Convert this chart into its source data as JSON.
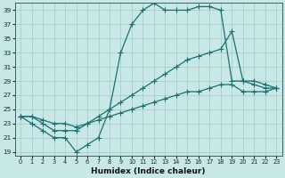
{
  "xlabel": "Humidex (Indice chaleur)",
  "xlim": [
    -0.5,
    23.5
  ],
  "ylim": [
    18.5,
    40
  ],
  "xticks": [
    0,
    1,
    2,
    3,
    4,
    5,
    6,
    7,
    8,
    9,
    10,
    11,
    12,
    13,
    14,
    15,
    16,
    17,
    18,
    19,
    20,
    21,
    22,
    23
  ],
  "yticks": [
    19,
    21,
    23,
    25,
    27,
    29,
    31,
    33,
    35,
    37,
    39
  ],
  "bg_color": "#c8e8e8",
  "grid_color": "#aacccc",
  "line_color": "#1a7070",
  "line1_x": [
    0,
    1,
    2,
    3,
    4,
    5,
    6,
    7,
    8,
    9,
    10,
    11,
    12,
    13,
    14,
    15,
    16,
    17,
    18,
    19,
    20,
    21,
    22,
    23
  ],
  "line1_y": [
    24,
    23,
    22,
    21,
    21,
    19,
    20,
    21,
    25,
    33,
    37,
    39,
    40,
    39,
    39,
    39,
    39.5,
    39.5,
    39,
    29,
    29,
    28.5,
    28,
    28
  ],
  "line2_x": [
    0,
    1,
    2,
    3,
    4,
    5,
    6,
    7,
    8,
    9,
    10,
    11,
    12,
    13,
    14,
    15,
    16,
    17,
    18,
    19,
    20,
    21,
    22,
    23
  ],
  "line2_y": [
    24,
    24,
    23,
    22,
    22,
    22,
    23,
    24,
    25,
    26,
    27,
    28,
    29,
    30,
    31,
    32,
    32.5,
    33,
    33.5,
    36,
    29,
    29,
    28.5,
    28
  ],
  "line3_x": [
    0,
    1,
    2,
    3,
    4,
    5,
    6,
    7,
    8,
    9,
    10,
    11,
    12,
    13,
    14,
    15,
    16,
    17,
    18,
    19,
    20,
    21,
    22,
    23
  ],
  "line3_y": [
    24,
    24,
    23.5,
    23,
    23,
    22.5,
    23,
    23.5,
    24,
    24.5,
    25,
    25.5,
    26,
    26.5,
    27,
    27.5,
    27.5,
    28,
    28.5,
    28.5,
    27.5,
    27.5,
    27.5,
    28
  ]
}
